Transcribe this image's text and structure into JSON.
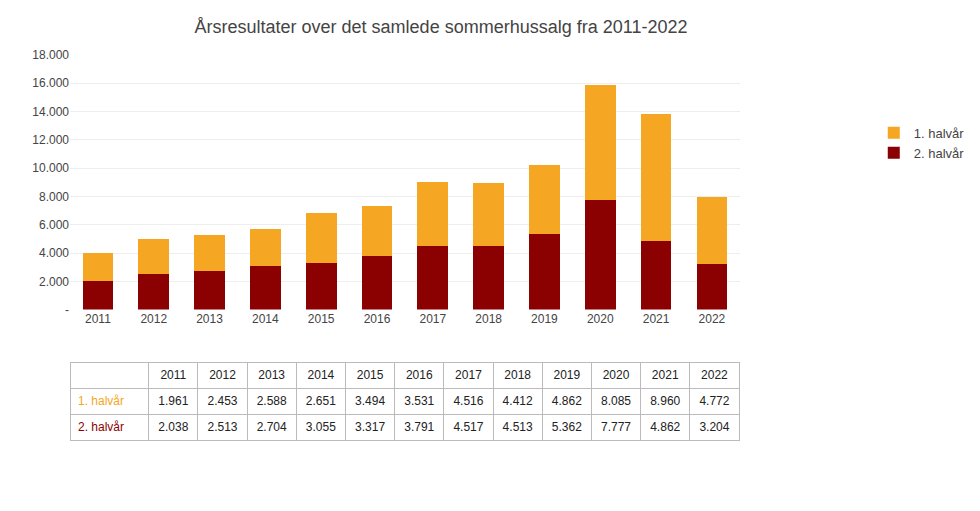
{
  "chart_data": {
    "type": "bar",
    "title": "Årsresultater over det samlede sommerhussalg fra 2011-2022",
    "categories": [
      "2011",
      "2012",
      "2013",
      "2014",
      "2015",
      "2016",
      "2017",
      "2018",
      "2019",
      "2020",
      "2021",
      "2022"
    ],
    "series": [
      {
        "name": "2. halvår",
        "color": "#8B0000",
        "values": [
          2038,
          2513,
          2704,
          3055,
          3317,
          3791,
          4517,
          4513,
          5362,
          7777,
          4862,
          3204
        ],
        "value_labels": [
          "2.038",
          "2.513",
          "2.704",
          "3.055",
          "3.317",
          "3.791",
          "4.517",
          "4.513",
          "5.362",
          "7.777",
          "4.862",
          "3.204"
        ]
      },
      {
        "name": "1. halvår",
        "color": "#F5A623",
        "values": [
          1961,
          2453,
          2588,
          2651,
          3494,
          3531,
          4516,
          4412,
          4862,
          8085,
          8960,
          4772
        ],
        "value_labels": [
          "1.961",
          "2.453",
          "2.588",
          "2.651",
          "3.494",
          "3.531",
          "4.516",
          "4.412",
          "4.862",
          "8.085",
          "8.960",
          "4.772"
        ]
      }
    ],
    "stacked": true,
    "ylim": [
      0,
      18000
    ],
    "yticks": [
      {
        "value": 0,
        "label": "-"
      },
      {
        "value": 2000,
        "label": "2.000"
      },
      {
        "value": 4000,
        "label": "4.000"
      },
      {
        "value": 6000,
        "label": "6.000"
      },
      {
        "value": 8000,
        "label": "8.000"
      },
      {
        "value": 10000,
        "label": "10.000"
      },
      {
        "value": 12000,
        "label": "12.000"
      },
      {
        "value": 14000,
        "label": "14.000"
      },
      {
        "value": 16000,
        "label": "16.000"
      },
      {
        "value": 18000,
        "label": "18.000"
      }
    ],
    "grid": true,
    "legend": "right"
  }
}
